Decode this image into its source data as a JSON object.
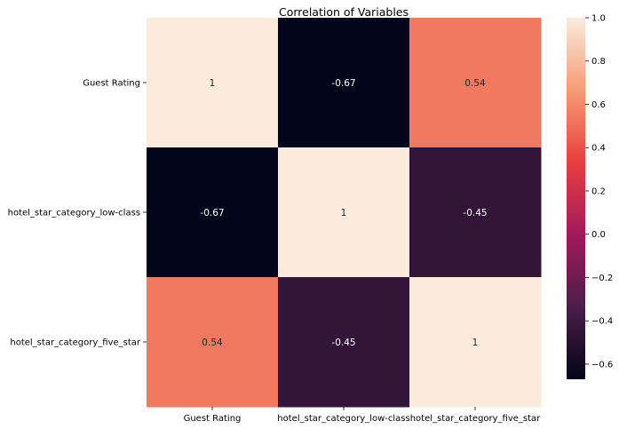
{
  "chart_data": {
    "type": "heatmap",
    "title": "Correlation of Variables",
    "xlabel": "",
    "ylabel": "",
    "rows": [
      "Guest Rating",
      "hotel_star_category_low-class",
      "hotel_star_category_five_star"
    ],
    "columns": [
      "Guest Rating",
      "hotel_star_category_low-class",
      "hotel_star_category_five_star"
    ],
    "values": [
      [
        1,
        -0.67,
        0.54
      ],
      [
        -0.67,
        1,
        -0.45
      ],
      [
        0.54,
        -0.45,
        1
      ]
    ],
    "value_labels": [
      [
        "1",
        "-0.67",
        "0.54"
      ],
      [
        "-0.67",
        "1",
        "-0.45"
      ],
      [
        "0.54",
        "-0.45",
        "1"
      ]
    ],
    "colorbar": {
      "min": -0.67,
      "max": 1.0,
      "ticks": [
        1.0,
        0.8,
        0.6,
        0.4,
        0.2,
        0.0,
        -0.2,
        -0.4,
        -0.6
      ],
      "tick_labels": [
        "1.0",
        "0.8",
        "0.6",
        "0.4",
        "0.2",
        "0.0",
        "−0.2",
        "−0.4",
        "−0.6"
      ],
      "colormap": "rocket",
      "stops": [
        "#03051a",
        "#4c1d4b",
        "#a11a5b",
        "#e83f3f",
        "#f69c73",
        "#faebdd"
      ]
    },
    "grid": false,
    "legend": "right"
  }
}
